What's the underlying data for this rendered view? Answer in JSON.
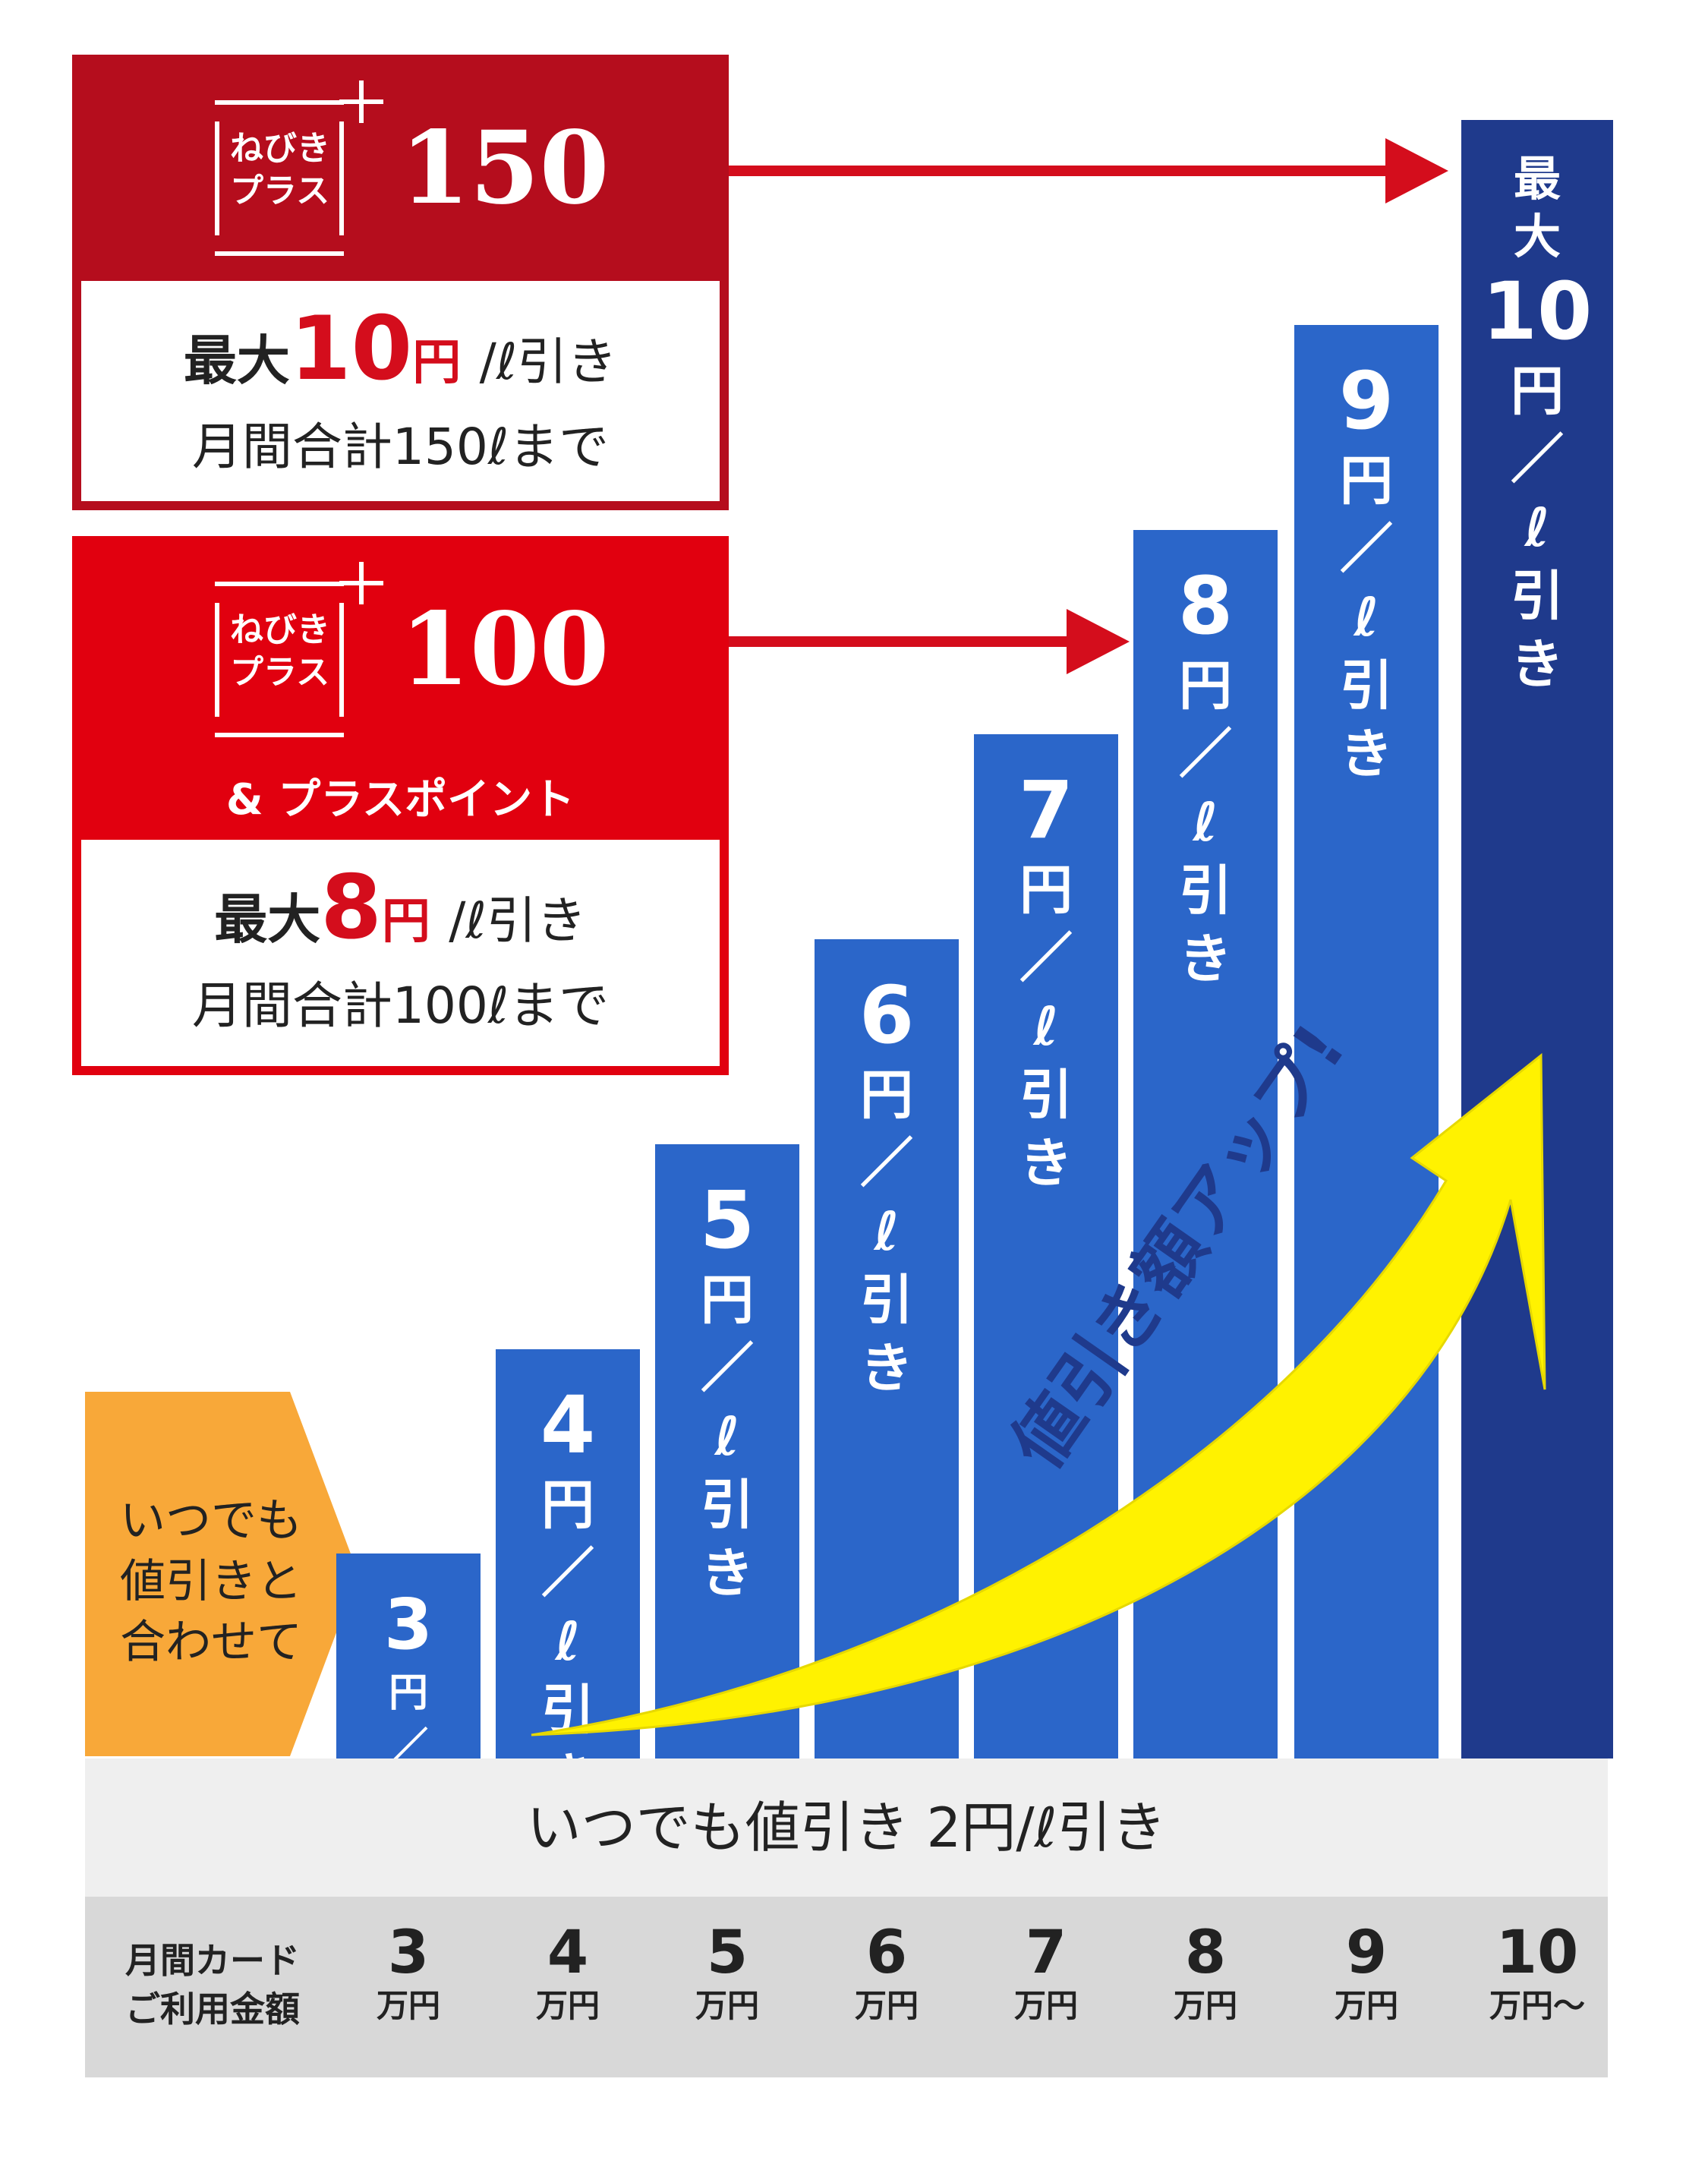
{
  "plans": [
    {
      "logo_line1": "ねびき",
      "logo_line2": "プラス",
      "number": "150",
      "max_label": "最大",
      "amount": "10",
      "yen": "円",
      "unit": "/ℓ引き",
      "limit": "月間合計150ℓまで"
    },
    {
      "logo_line1": "ねびき",
      "logo_line2": "プラス",
      "number": "100",
      "sub": "& プラスポイント",
      "max_label": "最大",
      "amount": "8",
      "yen": "円",
      "unit": "/ℓ引き",
      "limit": "月間合計100ℓまで"
    }
  ],
  "combine_note": {
    "line1": "いつでも",
    "line2": "値引きと",
    "line3": "合わせて"
  },
  "base_discount": "いつでも値引き 2円/ℓ引き",
  "growth_label": "値引き額アップ!",
  "axis_label": {
    "line1": "月間カード",
    "line2": "ご利用金額"
  },
  "colors": {
    "bar": "#2b66c9",
    "max_bar": "#1f3a8c",
    "plan150": "#b50d1d",
    "plan100": "#e1000f",
    "arrow": "#fff200",
    "orange": "#f8a839"
  },
  "chart_data": {
    "type": "bar",
    "categories": [
      "3",
      "4",
      "5",
      "6",
      "7",
      "8",
      "9",
      "10"
    ],
    "category_units": [
      "万円",
      "万円",
      "万円",
      "万円",
      "万円",
      "万円",
      "万円",
      "万円〜"
    ],
    "values": [
      3,
      4,
      5,
      6,
      7,
      8,
      9,
      10
    ],
    "bar_labels": [
      {
        "prefix": "",
        "value": "3",
        "suffix": "円／ℓ引き"
      },
      {
        "prefix": "",
        "value": "4",
        "suffix": "円／ℓ引き"
      },
      {
        "prefix": "",
        "value": "5",
        "suffix": "円／ℓ引き"
      },
      {
        "prefix": "",
        "value": "6",
        "suffix": "円／ℓ引き"
      },
      {
        "prefix": "",
        "value": "7",
        "suffix": "円／ℓ引き"
      },
      {
        "prefix": "",
        "value": "8",
        "suffix": "円／ℓ引き"
      },
      {
        "prefix": "",
        "value": "9",
        "suffix": "円／ℓ引き"
      },
      {
        "prefix": "最大",
        "value": "10",
        "suffix": "円／ℓ引き"
      }
    ],
    "ylim": [
      2,
      10
    ]
  }
}
